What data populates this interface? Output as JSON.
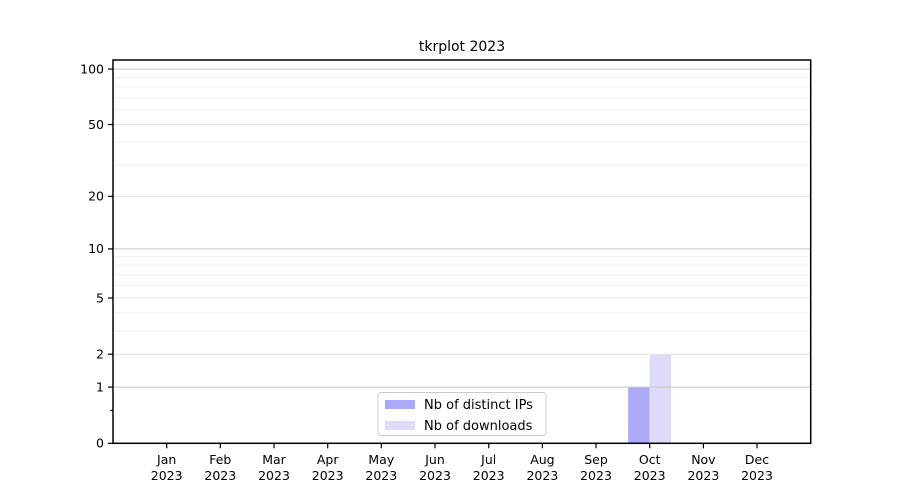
{
  "chart_data": {
    "type": "bar",
    "title": "tkrplot 2023",
    "x": {
      "months": [
        "Jan",
        "Feb",
        "Mar",
        "Apr",
        "May",
        "Jun",
        "Jul",
        "Aug",
        "Sep",
        "Oct",
        "Nov",
        "Dec"
      ],
      "year": "2023"
    },
    "series": [
      {
        "name": "Nb of distinct IPs",
        "color": "#aaaaf8",
        "values": [
          0,
          0,
          0,
          0,
          0,
          0,
          0,
          0,
          0,
          1,
          0,
          0
        ]
      },
      {
        "name": "Nb of downloads",
        "color": "#dcdcf8",
        "values": [
          0,
          0,
          0,
          0,
          0,
          0,
          0,
          0,
          0,
          2,
          0,
          0
        ]
      }
    ],
    "y_axis": {
      "scale": "log1p",
      "ticks": [
        0,
        1,
        2,
        5,
        10,
        20,
        50,
        100
      ],
      "minor_ticks": [
        0.5
      ],
      "max": 112
    },
    "grid": {
      "strong_lines": [
        1,
        10,
        100
      ],
      "medium_lines": [
        2,
        5,
        20,
        50
      ],
      "faint_lines": [
        3,
        4,
        6,
        7,
        8,
        9,
        30,
        40,
        60,
        70,
        80,
        90
      ],
      "strong_color": "#c6c6c6",
      "medium_color": "#e2e2e2",
      "faint_color": "#efefef"
    },
    "legend": {
      "entries": [
        "Nb of distinct IPs",
        "Nb of downloads"
      ],
      "position": "bottom-center",
      "border_color": "#cccccc"
    },
    "frame_color": "#000000",
    "background_color": "#ffffff"
  }
}
